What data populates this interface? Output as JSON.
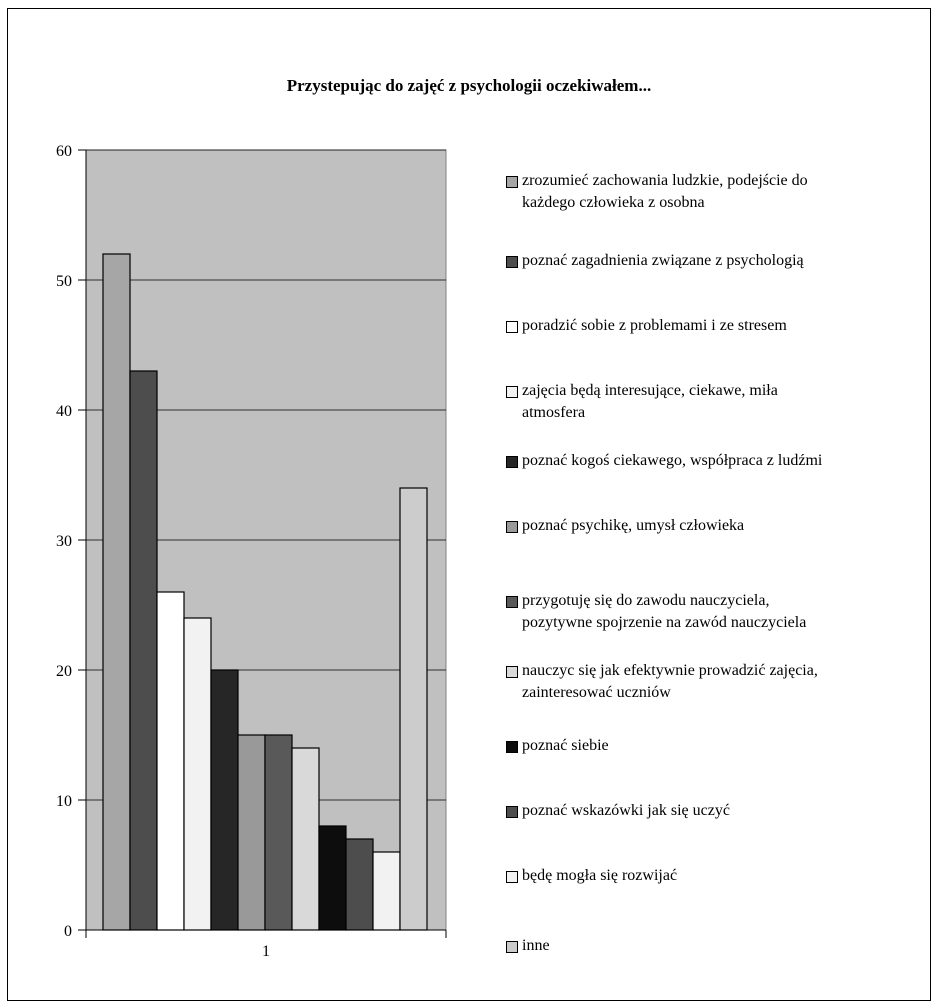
{
  "chart_data": {
    "type": "bar",
    "title": "Przystepując do zajęć z psychologii oczekiwałem...",
    "categories": [
      "1"
    ],
    "ylim": [
      0,
      60
    ],
    "yticks": [
      0,
      10,
      20,
      30,
      40,
      50,
      60
    ],
    "grid": true,
    "legend_position": "right",
    "plot_background": "#c0c0c0",
    "series": [
      {
        "name": "zrozumieć zachowania ludzkie, podejście do\nkażdego człowieka z osobna",
        "values": [
          52
        ],
        "color": "#a6a6a6"
      },
      {
        "name": "poznać zagadnienia związane z psychologią",
        "values": [
          43
        ],
        "color": "#4d4d4d"
      },
      {
        "name": "poradzić sobie z problemami i ze stresem",
        "values": [
          26
        ],
        "color": "#ffffff"
      },
      {
        "name": "zajęcia będą interesujące, ciekawe, miła\natmosfera",
        "values": [
          24
        ],
        "color": "#f2f2f2"
      },
      {
        "name": "poznać kogoś ciekawego, współpraca z ludźmi",
        "values": [
          20
        ],
        "color": "#262626"
      },
      {
        "name": "poznać psychikę, umysł człowieka",
        "values": [
          15
        ],
        "color": "#999999"
      },
      {
        "name": "przygotuję się do zawodu nauczyciela,\npozytywne spojrzenie na zawód nauczyciela",
        "values": [
          15
        ],
        "color": "#595959"
      },
      {
        "name": "nauczyc się jak efektywnie prowadzić zajęcia,\nzainteresować uczniów",
        "values": [
          14
        ],
        "color": "#d9d9d9"
      },
      {
        "name": "poznać siebie",
        "values": [
          8
        ],
        "color": "#0d0d0d"
      },
      {
        "name": "poznać wskazówki jak się uczyć",
        "values": [
          7
        ],
        "color": "#4d4d4d"
      },
      {
        "name": "będę mogła się rozwijać",
        "values": [
          6
        ],
        "color": "#f2f2f2"
      },
      {
        "name": "inne",
        "values": [
          34
        ],
        "color": "#cccccc"
      }
    ]
  }
}
